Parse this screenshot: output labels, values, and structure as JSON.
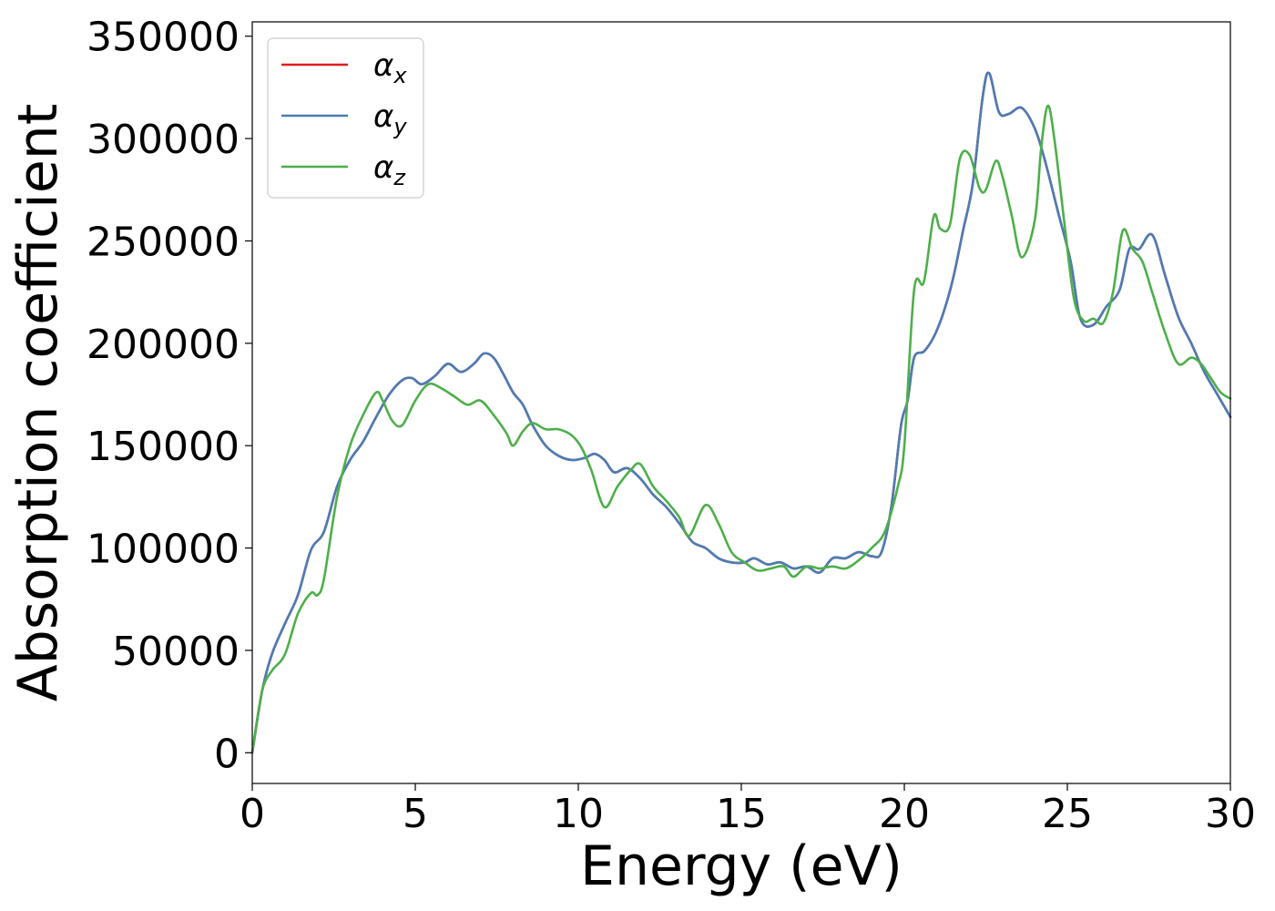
{
  "chart_data": {
    "type": "line",
    "xlabel": "Energy (eV)",
    "ylabel": "Absorption coefficient",
    "xlim": [
      0,
      30
    ],
    "ylim": [
      -15000,
      357000
    ],
    "xticks": [
      0,
      5,
      10,
      15,
      20,
      25,
      30
    ],
    "yticks": [
      0,
      50000,
      100000,
      150000,
      200000,
      250000,
      300000,
      350000
    ],
    "grid": false,
    "legend_position": "top-left",
    "series": [
      {
        "name": "αx",
        "name_base": "α",
        "name_sub": "x",
        "color": "#e41a1c",
        "x": [
          0,
          0.3,
          0.6,
          1.0,
          1.4,
          1.8,
          2.2,
          2.6,
          3.0,
          3.4,
          3.8,
          4.2,
          4.6,
          4.9,
          5.2,
          5.6,
          6.0,
          6.4,
          6.8,
          7.1,
          7.4,
          7.7,
          8.0,
          8.3,
          8.6,
          9.0,
          9.4,
          9.8,
          10.2,
          10.5,
          10.8,
          11.1,
          11.5,
          11.9,
          12.3,
          12.7,
          13.1,
          13.5,
          13.9,
          14.3,
          14.7,
          15.1,
          15.4,
          15.8,
          16.2,
          16.6,
          17.0,
          17.4,
          17.8,
          18.2,
          18.6,
          19.0,
          19.3,
          19.6,
          19.9,
          20.1,
          20.3,
          20.6,
          20.9,
          21.2,
          21.5,
          21.8,
          22.1,
          22.4,
          22.6,
          22.9,
          23.2,
          23.6,
          24.0,
          24.3,
          24.7,
          25.1,
          25.4,
          25.8,
          26.2,
          26.6,
          26.9,
          27.2,
          27.6,
          28.0,
          28.4,
          28.8,
          29.2,
          29.6,
          30.0
        ],
        "y": [
          0,
          30000,
          48000,
          63000,
          77000,
          99000,
          108000,
          130000,
          143000,
          152000,
          164000,
          175000,
          182000,
          183000,
          180000,
          184000,
          190000,
          186000,
          190000,
          195000,
          193000,
          185000,
          176000,
          170000,
          160000,
          150000,
          145000,
          143000,
          144000,
          146000,
          143000,
          137000,
          139000,
          134000,
          126000,
          120000,
          112000,
          103000,
          100000,
          95000,
          93000,
          93000,
          95000,
          92000,
          93000,
          90000,
          91000,
          88000,
          95000,
          95000,
          98000,
          96000,
          98000,
          120000,
          160000,
          172000,
          193000,
          196000,
          203000,
          215000,
          232000,
          255000,
          278000,
          320000,
          332000,
          313000,
          312000,
          315000,
          305000,
          290000,
          265000,
          240000,
          212000,
          209000,
          218000,
          226000,
          246000,
          246000,
          253000,
          233000,
          213000,
          200000,
          186000,
          175000,
          164000
        ]
      },
      {
        "name": "αy",
        "name_base": "α",
        "name_sub": "y",
        "color": "#4a7db5",
        "x": [
          0,
          0.3,
          0.6,
          1.0,
          1.4,
          1.8,
          2.2,
          2.6,
          3.0,
          3.4,
          3.8,
          4.2,
          4.6,
          4.9,
          5.2,
          5.6,
          6.0,
          6.4,
          6.8,
          7.1,
          7.4,
          7.7,
          8.0,
          8.3,
          8.6,
          9.0,
          9.4,
          9.8,
          10.2,
          10.5,
          10.8,
          11.1,
          11.5,
          11.9,
          12.3,
          12.7,
          13.1,
          13.5,
          13.9,
          14.3,
          14.7,
          15.1,
          15.4,
          15.8,
          16.2,
          16.6,
          17.0,
          17.4,
          17.8,
          18.2,
          18.6,
          19.0,
          19.3,
          19.6,
          19.9,
          20.1,
          20.3,
          20.6,
          20.9,
          21.2,
          21.5,
          21.8,
          22.1,
          22.4,
          22.6,
          22.9,
          23.2,
          23.6,
          24.0,
          24.3,
          24.7,
          25.1,
          25.4,
          25.8,
          26.2,
          26.6,
          26.9,
          27.2,
          27.6,
          28.0,
          28.4,
          28.8,
          29.2,
          29.6,
          30.0
        ],
        "y": [
          0,
          30000,
          48000,
          63000,
          77000,
          99000,
          108000,
          130000,
          143000,
          152000,
          164000,
          175000,
          182000,
          183000,
          180000,
          184000,
          190000,
          186000,
          190000,
          195000,
          193000,
          185000,
          176000,
          170000,
          160000,
          150000,
          145000,
          143000,
          144000,
          146000,
          143000,
          137000,
          139000,
          134000,
          126000,
          120000,
          112000,
          103000,
          100000,
          95000,
          93000,
          93000,
          95000,
          92000,
          93000,
          90000,
          91000,
          88000,
          95000,
          95000,
          98000,
          96000,
          98000,
          120000,
          160000,
          172000,
          193000,
          196000,
          203000,
          215000,
          232000,
          255000,
          278000,
          320000,
          332000,
          313000,
          312000,
          315000,
          305000,
          290000,
          265000,
          240000,
          212000,
          209000,
          218000,
          226000,
          246000,
          246000,
          253000,
          233000,
          213000,
          200000,
          186000,
          175000,
          164000
        ]
      },
      {
        "name": "αz",
        "name_base": "α",
        "name_sub": "z",
        "color": "#4daf4a",
        "x": [
          0,
          0.3,
          0.6,
          1.0,
          1.4,
          1.8,
          2.0,
          2.2,
          2.6,
          3.0,
          3.4,
          3.8,
          4.0,
          4.3,
          4.6,
          5.0,
          5.4,
          5.8,
          6.2,
          6.6,
          7.0,
          7.4,
          7.8,
          8.0,
          8.3,
          8.6,
          9.0,
          9.4,
          9.8,
          10.1,
          10.4,
          10.8,
          11.2,
          11.6,
          11.9,
          12.3,
          12.7,
          13.1,
          13.4,
          13.9,
          14.3,
          14.7,
          15.1,
          15.5,
          15.9,
          16.3,
          16.6,
          17.0,
          17.4,
          17.8,
          18.2,
          18.6,
          19.0,
          19.4,
          19.8,
          20.0,
          20.3,
          20.6,
          20.9,
          21.1,
          21.4,
          21.7,
          22.0,
          22.3,
          22.5,
          22.8,
          23.0,
          23.3,
          23.6,
          24.0,
          24.2,
          24.4,
          24.6,
          24.9,
          25.2,
          25.5,
          25.8,
          26.1,
          26.4,
          26.7,
          27.0,
          27.3,
          27.6,
          28.0,
          28.4,
          28.8,
          29.1,
          29.4,
          29.7,
          30.0
        ],
        "y": [
          0,
          30000,
          40000,
          48000,
          68000,
          78000,
          77000,
          85000,
          125000,
          150000,
          165000,
          176000,
          172000,
          162000,
          160000,
          172000,
          180000,
          178000,
          174000,
          170000,
          172000,
          165000,
          156000,
          150000,
          157000,
          161000,
          158000,
          158000,
          155000,
          149000,
          138000,
          120000,
          130000,
          138000,
          141000,
          130000,
          123000,
          115000,
          106000,
          121000,
          112000,
          98000,
          93000,
          89000,
          90000,
          91000,
          86000,
          91000,
          90000,
          91000,
          90000,
          94000,
          100000,
          108000,
          130000,
          150000,
          226000,
          230000,
          262000,
          256000,
          258000,
          290000,
          292000,
          276000,
          275000,
          289000,
          282000,
          262000,
          242000,
          260000,
          296000,
          316000,
          300000,
          260000,
          222000,
          211000,
          212000,
          210000,
          225000,
          255000,
          246000,
          240000,
          225000,
          205000,
          190000,
          193000,
          190000,
          183000,
          176000,
          173000
        ]
      }
    ]
  }
}
